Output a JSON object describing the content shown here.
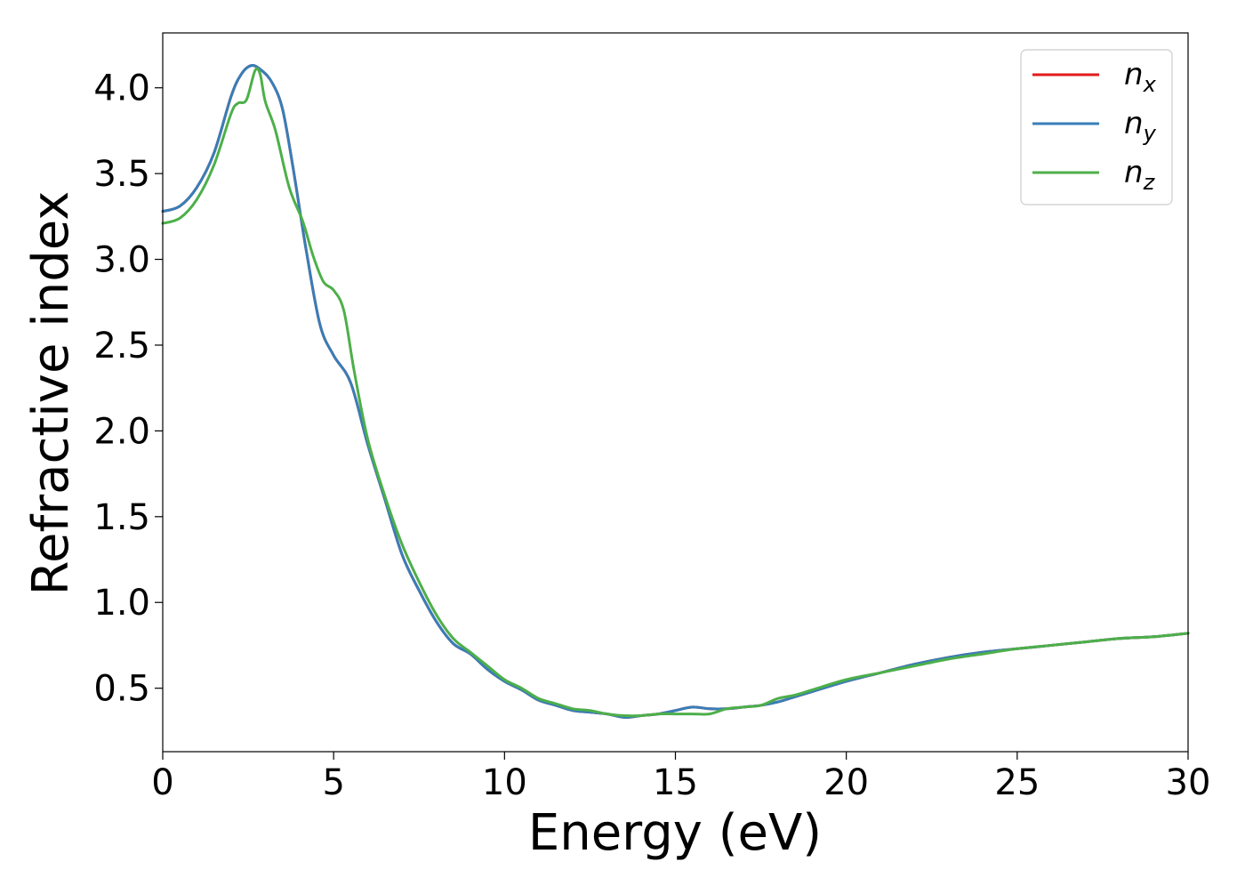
{
  "chart_data": {
    "type": "line",
    "title": "",
    "xlabel": "Energy (eV)",
    "ylabel": "Refractive index",
    "xlim": [
      0,
      30
    ],
    "ylim": [
      0.13,
      4.32
    ],
    "xticks": [
      0,
      5,
      10,
      15,
      20,
      25,
      30
    ],
    "xtick_labels": [
      "0",
      "5",
      "10",
      "15",
      "20",
      "25",
      "30"
    ],
    "yticks": [
      0.5,
      1.0,
      1.5,
      2.0,
      2.5,
      3.0,
      3.5,
      4.0
    ],
    "ytick_labels": [
      "0.5",
      "1.0",
      "1.5",
      "2.0",
      "2.5",
      "3.0",
      "3.5",
      "4.0"
    ],
    "grid": false,
    "legend_position": "top-right",
    "series": [
      {
        "name": "n_x",
        "label_main": "n",
        "label_sub": "x",
        "color": "#e41a1c",
        "x": [
          0,
          0.5,
          1.0,
          1.5,
          2.0,
          2.3,
          2.6,
          2.9,
          3.2,
          3.5,
          3.8,
          4.2,
          4.6,
          5.0,
          5.5,
          6.0,
          6.5,
          7.0,
          7.5,
          8.0,
          8.5,
          9.0,
          9.5,
          10.0,
          10.5,
          11.0,
          11.5,
          12.0,
          12.5,
          13.0,
          13.5,
          14.0,
          14.5,
          15.0,
          15.5,
          16.0,
          16.5,
          17.0,
          17.5,
          18.0,
          18.5,
          19.0,
          20.0,
          21.0,
          22.0,
          23.0,
          24.0,
          25.0,
          26.0,
          27.0,
          28.0,
          29.0,
          30.0
        ],
        "y": [
          3.28,
          3.31,
          3.42,
          3.62,
          3.95,
          4.08,
          4.13,
          4.1,
          4.03,
          3.88,
          3.55,
          3.05,
          2.62,
          2.44,
          2.28,
          1.92,
          1.6,
          1.28,
          1.07,
          0.89,
          0.76,
          0.7,
          0.61,
          0.54,
          0.49,
          0.43,
          0.4,
          0.37,
          0.36,
          0.35,
          0.33,
          0.34,
          0.35,
          0.37,
          0.39,
          0.38,
          0.38,
          0.39,
          0.4,
          0.42,
          0.45,
          0.48,
          0.54,
          0.59,
          0.64,
          0.68,
          0.71,
          0.73,
          0.75,
          0.77,
          0.79,
          0.8,
          0.82
        ]
      },
      {
        "name": "n_y",
        "label_main": "n",
        "label_sub": "y",
        "color": "#377eb8",
        "x": [
          0,
          0.5,
          1.0,
          1.5,
          2.0,
          2.3,
          2.6,
          2.9,
          3.2,
          3.5,
          3.8,
          4.2,
          4.6,
          5.0,
          5.5,
          6.0,
          6.5,
          7.0,
          7.5,
          8.0,
          8.5,
          9.0,
          9.5,
          10.0,
          10.5,
          11.0,
          11.5,
          12.0,
          12.5,
          13.0,
          13.5,
          14.0,
          14.5,
          15.0,
          15.5,
          16.0,
          16.5,
          17.0,
          17.5,
          18.0,
          18.5,
          19.0,
          20.0,
          21.0,
          22.0,
          23.0,
          24.0,
          25.0,
          26.0,
          27.0,
          28.0,
          29.0,
          30.0
        ],
        "y": [
          3.28,
          3.31,
          3.42,
          3.62,
          3.95,
          4.08,
          4.13,
          4.1,
          4.03,
          3.88,
          3.55,
          3.05,
          2.62,
          2.44,
          2.28,
          1.92,
          1.6,
          1.28,
          1.07,
          0.89,
          0.76,
          0.7,
          0.61,
          0.54,
          0.49,
          0.43,
          0.4,
          0.37,
          0.36,
          0.35,
          0.33,
          0.34,
          0.35,
          0.37,
          0.39,
          0.38,
          0.38,
          0.39,
          0.4,
          0.42,
          0.45,
          0.48,
          0.54,
          0.59,
          0.64,
          0.68,
          0.71,
          0.73,
          0.75,
          0.77,
          0.79,
          0.8,
          0.82
        ]
      },
      {
        "name": "n_z",
        "label_main": "n",
        "label_sub": "z",
        "color": "#4daf4a",
        "x": [
          0,
          0.5,
          1.0,
          1.5,
          2.0,
          2.2,
          2.45,
          2.7,
          2.85,
          3.0,
          3.3,
          3.7,
          4.1,
          4.4,
          4.7,
          5.0,
          5.3,
          5.6,
          6.0,
          6.5,
          7.0,
          7.5,
          8.0,
          8.5,
          9.0,
          9.5,
          10.0,
          10.5,
          11.0,
          11.5,
          12.0,
          12.5,
          13.0,
          13.5,
          14.0,
          14.5,
          15.0,
          15.5,
          16.0,
          16.5,
          17.0,
          17.5,
          18.0,
          18.5,
          19.0,
          20.0,
          21.0,
          22.0,
          23.0,
          24.0,
          25.0,
          26.0,
          27.0,
          28.0,
          29.0,
          30.0
        ],
        "y": [
          3.21,
          3.24,
          3.35,
          3.55,
          3.85,
          3.91,
          3.93,
          4.1,
          4.08,
          3.92,
          3.75,
          3.42,
          3.22,
          3.02,
          2.87,
          2.82,
          2.7,
          2.35,
          1.95,
          1.62,
          1.34,
          1.12,
          0.93,
          0.79,
          0.71,
          0.63,
          0.55,
          0.5,
          0.44,
          0.41,
          0.38,
          0.37,
          0.35,
          0.34,
          0.34,
          0.35,
          0.35,
          0.35,
          0.35,
          0.38,
          0.39,
          0.4,
          0.44,
          0.46,
          0.49,
          0.55,
          0.59,
          0.63,
          0.67,
          0.7,
          0.73,
          0.75,
          0.77,
          0.79,
          0.8,
          0.82
        ]
      }
    ]
  }
}
